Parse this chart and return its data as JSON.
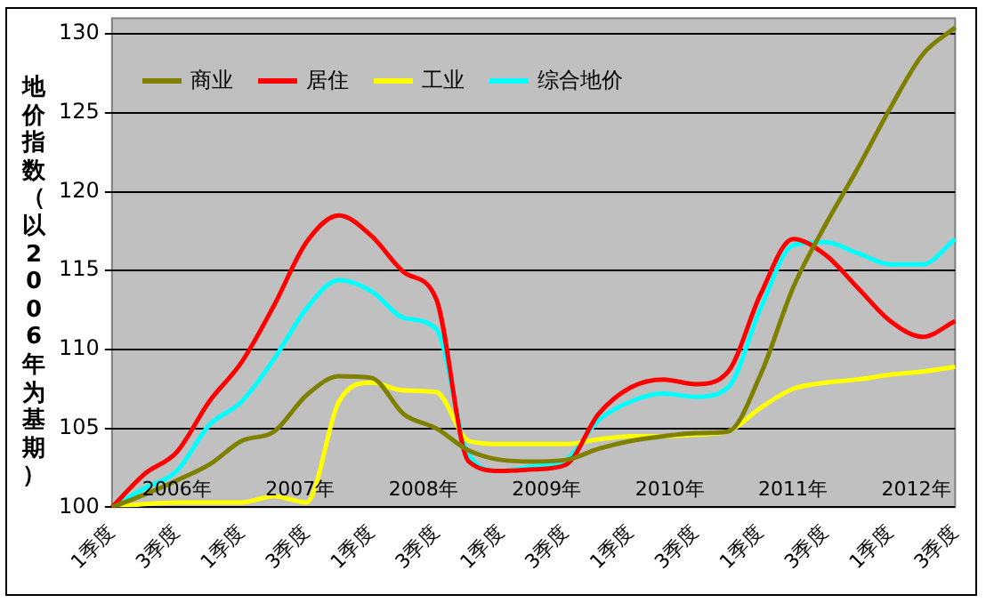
{
  "chart_data": {
    "type": "line",
    "ylabel": "地价指数（以2006年为基期）",
    "categories": [
      "1季度",
      null,
      "3季度",
      null,
      "1季度",
      null,
      "3季度",
      null,
      "1季度",
      null,
      "3季度",
      null,
      "1季度",
      null,
      "3季度",
      null,
      "1季度",
      null,
      "3季度",
      null,
      "1季度",
      null,
      "3季度",
      null,
      "1季度",
      null,
      "3季度"
    ],
    "series": [
      {
        "name": "商业",
        "color": "#808000",
        "values": [
          100,
          100.8,
          101.7,
          102.7,
          104.2,
          104.8,
          107.1,
          108.3,
          108.2,
          105.9,
          105,
          103.6,
          103,
          102.9,
          103,
          103.7,
          104.2,
          104.5,
          104.7,
          104.8,
          108.4,
          113.9,
          117.9,
          121.5,
          125.3,
          128.7,
          130.4
        ]
      },
      {
        "name": "居住",
        "color": "#ff0000",
        "values": [
          100,
          102.1,
          103.5,
          106.7,
          109.2,
          112.8,
          116.8,
          118.5,
          117.2,
          114.9,
          113.2,
          102.9,
          102.3,
          102.4,
          102.7,
          105.9,
          107.6,
          108.1,
          107.8,
          108.6,
          113.5,
          117,
          116,
          113.9,
          111.8,
          110.8,
          111.8
        ]
      },
      {
        "name": "工业",
        "color": "#ffff00",
        "values": [
          100,
          100.2,
          100.3,
          100.3,
          100.3,
          100.7,
          100.3,
          106.7,
          107.9,
          107.4,
          107.3,
          104.2,
          104,
          104,
          104,
          104.3,
          104.5,
          104.5,
          104.6,
          104.8,
          106.3,
          107.5,
          107.9,
          108.1,
          108.4,
          108.6,
          108.9
        ]
      },
      {
        "name": "综合地价",
        "color": "#00ffff",
        "values": [
          100,
          101.2,
          102.3,
          105.2,
          106.7,
          109.4,
          112.6,
          114.4,
          113.7,
          112,
          111.3,
          103.3,
          102.3,
          102.6,
          103,
          105.5,
          106.7,
          107.2,
          107,
          107.6,
          112.6,
          116.6,
          116.8,
          116.1,
          115.4,
          115.4,
          117
        ]
      }
    ],
    "ylim": [
      100,
      131
    ],
    "yticks": [
      100,
      105,
      110,
      115,
      120,
      125,
      130
    ],
    "grid": "y",
    "legend": "top left",
    "marker": "none",
    "line_style": "solid",
    "annotations": [
      "2006年",
      "2007年",
      "2008年",
      "2009年",
      "2010年",
      "2011年",
      "2012年"
    ]
  }
}
